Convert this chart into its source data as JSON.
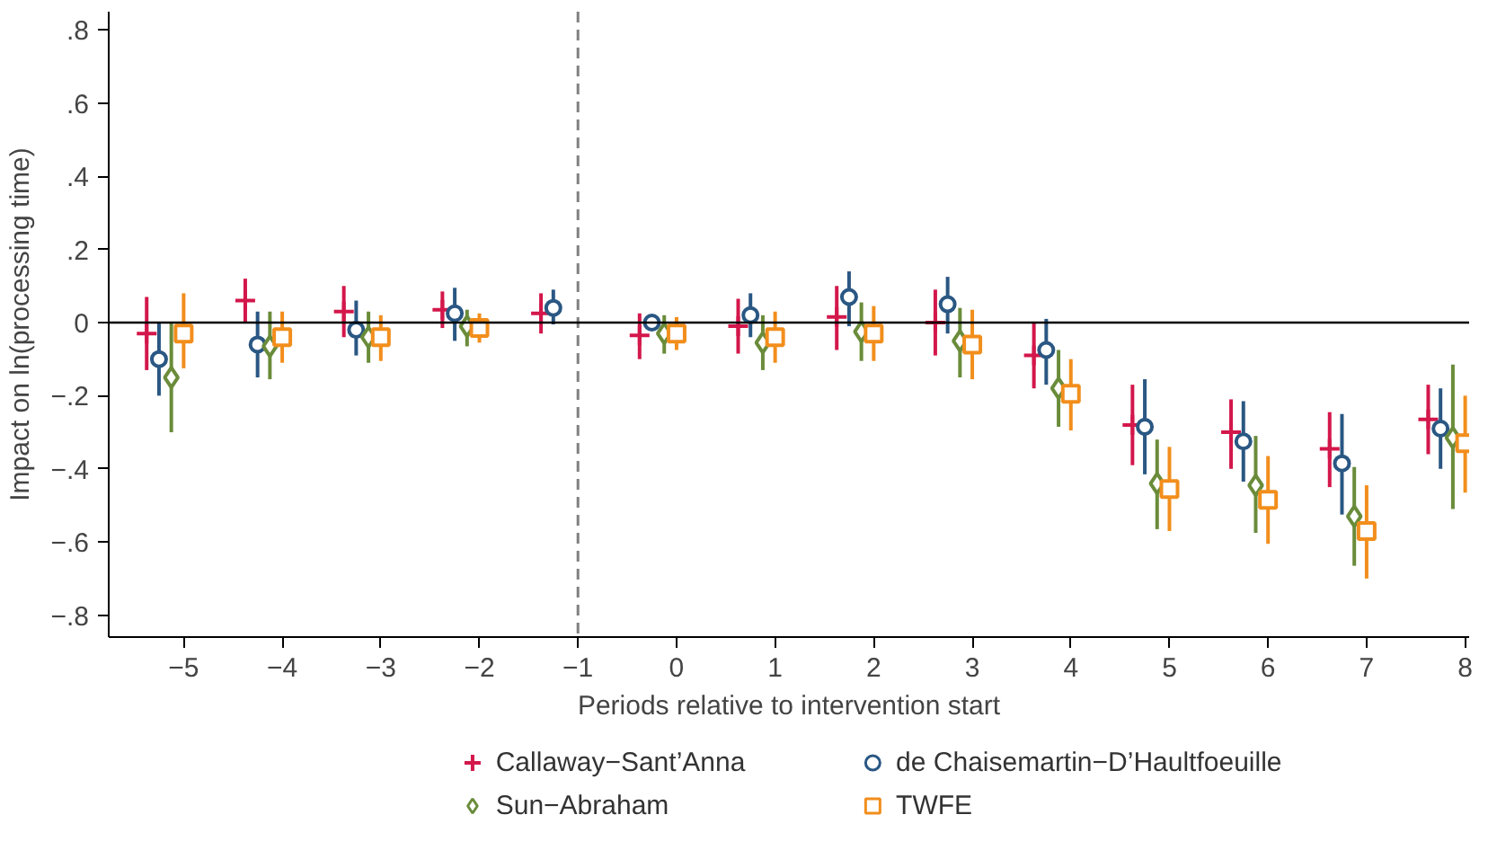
{
  "chart_data": {
    "type": "scatter",
    "xlabel": "Periods relative to intervention start",
    "ylabel": "Impact on ln(processing time)",
    "xlim": [
      -5.76,
      8.04
    ],
    "ylim": [
      -0.86,
      0.85
    ],
    "xticks": [
      {
        "value": -5,
        "label": "−5"
      },
      {
        "value": -4,
        "label": "−4"
      },
      {
        "value": -3,
        "label": "−3"
      },
      {
        "value": -2,
        "label": "−2"
      },
      {
        "value": -1,
        "label": "−1"
      },
      0,
      1,
      2,
      3,
      4,
      5,
      6,
      7,
      8
    ],
    "yticks": [
      {
        "value": -0.8,
        "label": "−.8"
      },
      {
        "value": -0.6,
        "label": "−.6"
      },
      {
        "value": -0.4,
        "label": "−.4"
      },
      {
        "value": -0.2,
        "label": "−.2"
      },
      0,
      {
        "value": 0.2,
        "label": ".2"
      },
      {
        "value": 0.4,
        "label": ".4"
      },
      {
        "value": 0.6,
        "label": ".6"
      },
      {
        "value": 0.8,
        "label": ".8"
      }
    ],
    "grid": false,
    "legend": "bottom",
    "ref_lines": [
      {
        "axis": "x",
        "value": -1,
        "color": "#808080",
        "line_style": "dashed"
      },
      {
        "axis": "y",
        "value": 0,
        "color": "#000000",
        "line_style": "solid"
      }
    ],
    "series": [
      {
        "name": "Callaway−Sant’Anna",
        "color": "#d3174b",
        "marker": "cross",
        "x": [
          -5.375,
          -4.375,
          -3.375,
          -2.375,
          -1.375,
          -0.375,
          0.625,
          1.625,
          2.625,
          3.625,
          4.625,
          5.625,
          6.625,
          7.625
        ],
        "values": [
          -0.03,
          0.06,
          0.03,
          0.035,
          0.025,
          -0.035,
          -0.01,
          0.015,
          0.0,
          -0.09,
          -0.28,
          -0.3,
          -0.345,
          -0.265
        ],
        "errors": [
          [
            -0.13,
            0.07
          ],
          [
            0.0,
            0.12
          ],
          [
            -0.04,
            0.1
          ],
          [
            -0.015,
            0.085
          ],
          [
            -0.03,
            0.08
          ],
          [
            -0.1,
            0.025
          ],
          [
            -0.085,
            0.065
          ],
          [
            -0.075,
            0.1
          ],
          [
            -0.09,
            0.09
          ],
          [
            -0.18,
            0.0
          ],
          [
            -0.39,
            -0.17
          ],
          [
            -0.4,
            -0.21
          ],
          [
            -0.45,
            -0.245
          ],
          [
            -0.36,
            -0.17
          ]
        ]
      },
      {
        "name": "de Chaisemartin−D’Haultfoeuille",
        "color": "#2a5783",
        "marker": "circle",
        "x": [
          -5.25,
          -4.25,
          -3.25,
          -2.25,
          -1.25,
          -0.25,
          0.75,
          1.75,
          2.75,
          3.75,
          4.75,
          5.75,
          6.75,
          7.75
        ],
        "values": [
          -0.1,
          -0.06,
          -0.02,
          0.025,
          0.04,
          0.0,
          0.02,
          0.07,
          0.05,
          -0.075,
          -0.285,
          -0.325,
          -0.385,
          -0.29
        ],
        "errors": [
          [
            -0.2,
            0.0
          ],
          [
            -0.15,
            0.03
          ],
          [
            -0.09,
            0.06
          ],
          [
            -0.05,
            0.095
          ],
          [
            -0.005,
            0.09
          ],
          null,
          [
            -0.04,
            0.08
          ],
          [
            -0.01,
            0.14
          ],
          [
            -0.03,
            0.125
          ],
          [
            -0.17,
            0.01
          ],
          [
            -0.415,
            -0.155
          ],
          [
            -0.435,
            -0.215
          ],
          [
            -0.525,
            -0.25
          ],
          [
            -0.4,
            -0.18
          ]
        ]
      },
      {
        "name": "Sun−Abraham",
        "color": "#6a8c3a",
        "marker": "diamond",
        "x": [
          -5.125,
          -4.125,
          -3.125,
          -2.125,
          -1.125,
          -0.125,
          0.875,
          1.875,
          2.875,
          3.875,
          4.875,
          5.875,
          6.875,
          7.875
        ],
        "values": [
          -0.15,
          -0.065,
          -0.04,
          -0.01,
          null,
          -0.03,
          -0.055,
          -0.025,
          -0.05,
          -0.18,
          -0.44,
          -0.445,
          -0.53,
          -0.315
        ],
        "errors": [
          [
            -0.3,
            0.0
          ],
          [
            -0.155,
            0.03
          ],
          [
            -0.11,
            0.03
          ],
          [
            -0.065,
            0.035
          ],
          null,
          [
            -0.085,
            0.02
          ],
          [
            -0.13,
            0.02
          ],
          [
            -0.105,
            0.055
          ],
          [
            -0.15,
            0.04
          ],
          [
            -0.285,
            -0.075
          ],
          [
            -0.565,
            -0.32
          ],
          [
            -0.575,
            -0.31
          ],
          [
            -0.665,
            -0.395
          ],
          [
            -0.51,
            -0.115
          ]
        ]
      },
      {
        "name": "TWFE",
        "color": "#f28e1c",
        "marker": "square",
        "x": [
          -5,
          -4,
          -3,
          -2,
          -1,
          0,
          1,
          2,
          3,
          4,
          5,
          6,
          7,
          8
        ],
        "values": [
          -0.03,
          -0.04,
          -0.04,
          -0.015,
          null,
          -0.03,
          -0.04,
          -0.03,
          -0.06,
          -0.195,
          -0.455,
          -0.485,
          -0.57,
          -0.33
        ],
        "errors": [
          [
            -0.125,
            0.08
          ],
          [
            -0.11,
            0.03
          ],
          [
            -0.105,
            0.02
          ],
          [
            -0.055,
            0.025
          ],
          null,
          [
            -0.075,
            0.015
          ],
          [
            -0.11,
            0.03
          ],
          [
            -0.105,
            0.045
          ],
          [
            -0.155,
            0.035
          ],
          [
            -0.295,
            -0.1
          ],
          [
            -0.57,
            -0.34
          ],
          [
            -0.605,
            -0.365
          ],
          [
            -0.7,
            -0.445
          ],
          [
            -0.465,
            -0.2
          ]
        ]
      }
    ]
  }
}
